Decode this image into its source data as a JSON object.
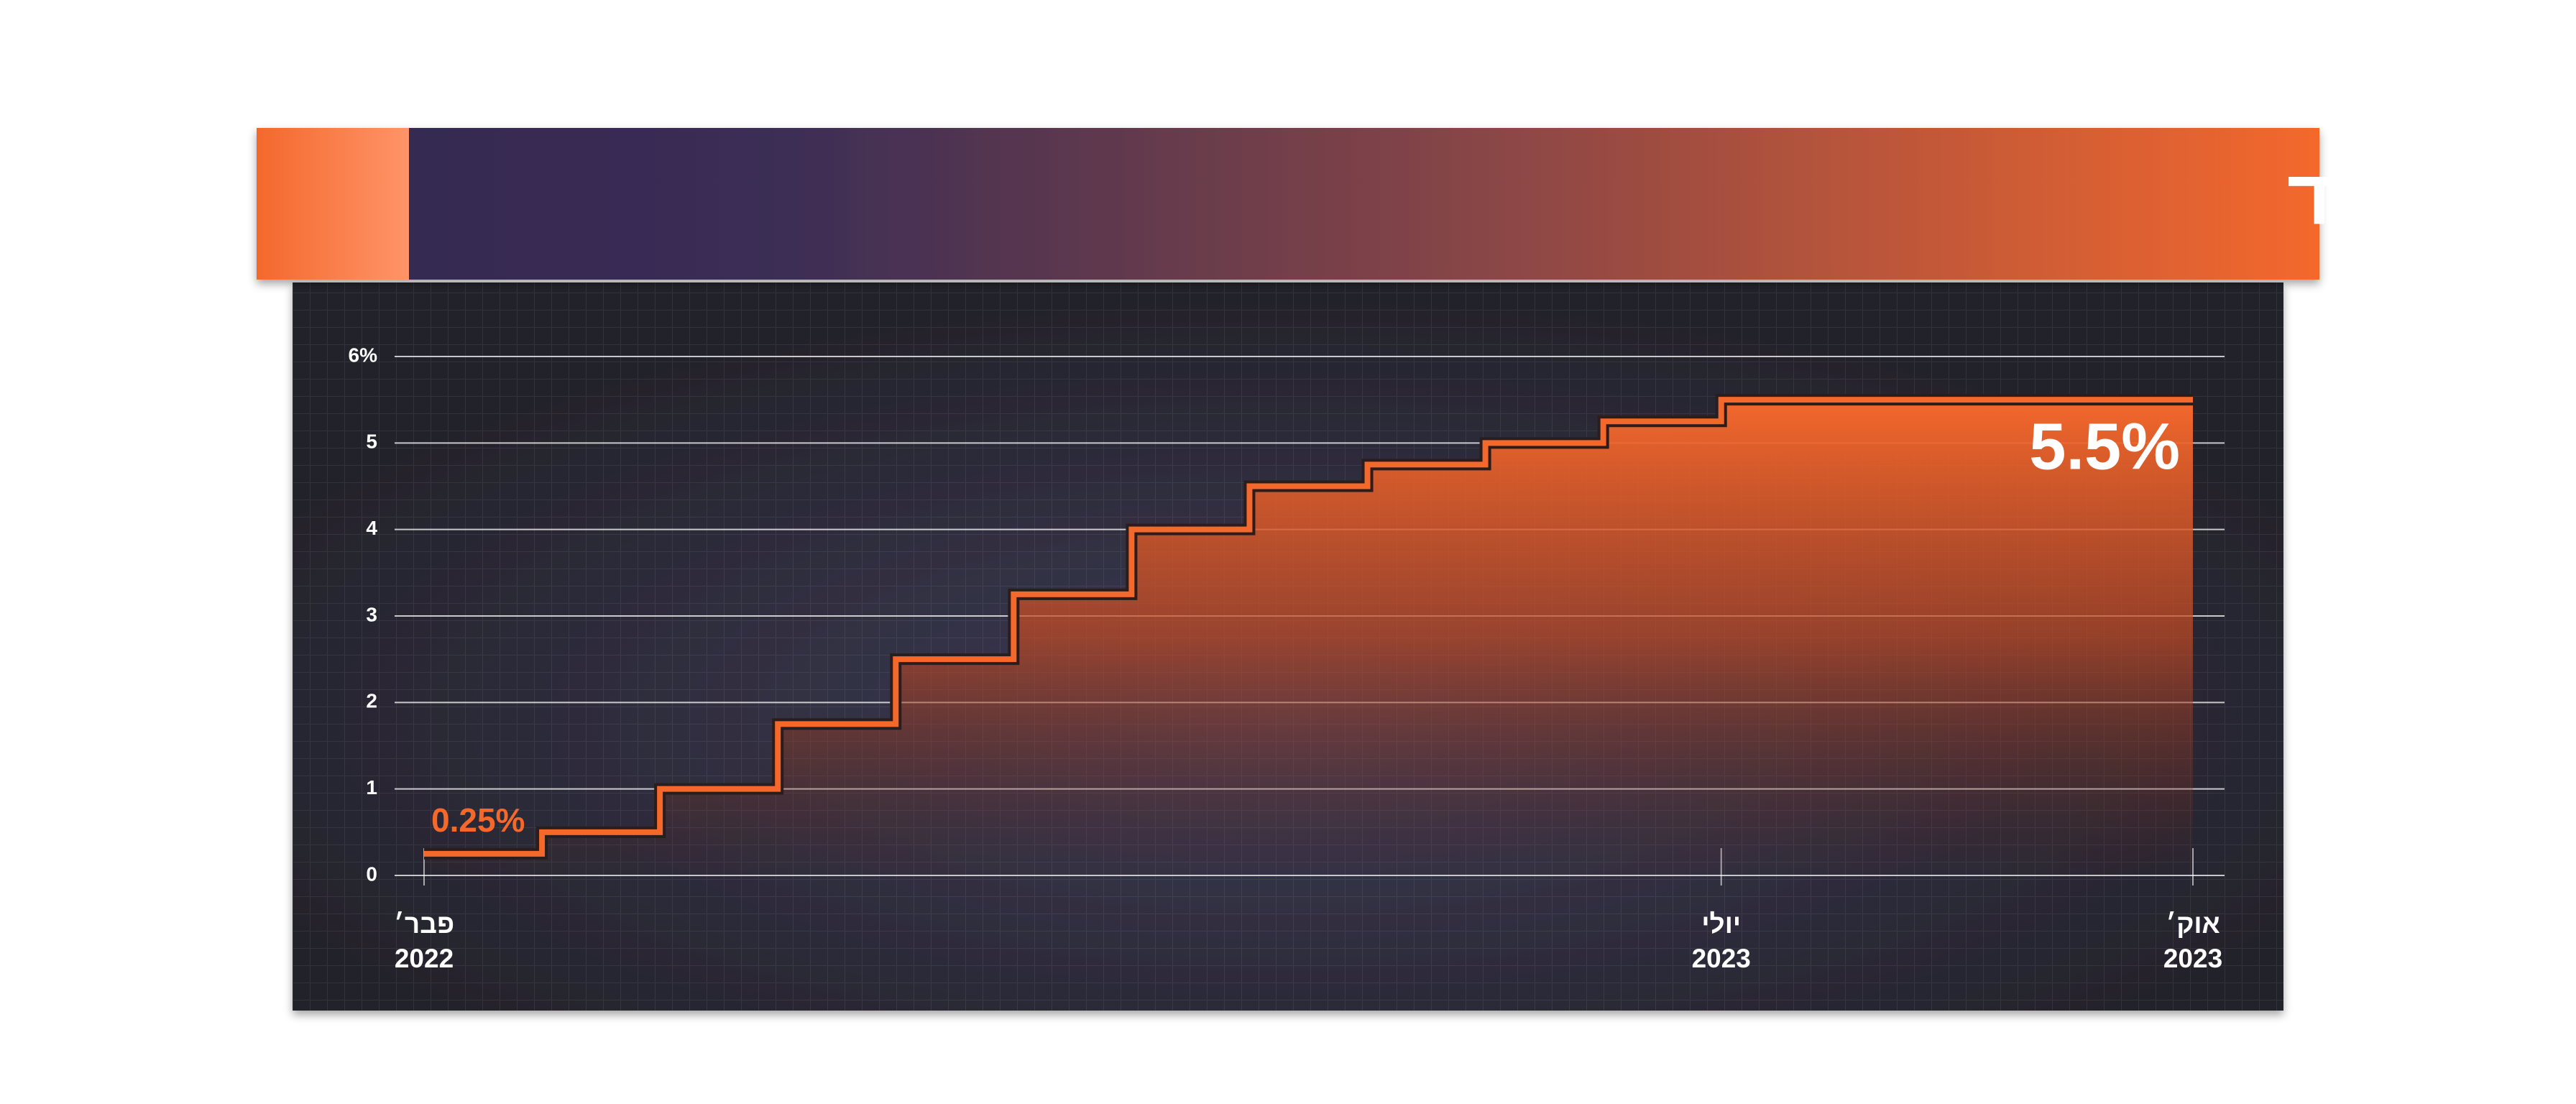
{
  "chart_data": {
    "type": "line",
    "step": "post",
    "title": "ריבית הפד",
    "categories": [
      "פבר׳\n2022",
      null,
      null,
      null,
      null,
      null,
      null,
      null,
      null,
      null,
      null,
      "יולי\n2023",
      null,
      null,
      null,
      "אוק׳\n2023"
    ],
    "values": [
      0.25,
      0.5,
      1,
      1.75,
      2.5,
      3.25,
      4,
      4.5,
      4.75,
      5,
      5.25,
      5.5,
      5.5,
      5.5,
      5.5,
      5.5
    ],
    "value_labels": [
      "0.25%",
      null,
      null,
      null,
      null,
      null,
      null,
      null,
      null,
      null,
      null,
      null,
      null,
      null,
      null,
      "5.5%"
    ],
    "color": "#f4682c",
    "ylim": [
      0,
      6
    ],
    "yticks": [
      0,
      1,
      2,
      3,
      4,
      5,
      {
        "value": 6,
        "label": "6%"
      }
    ],
    "grid": true
  }
}
